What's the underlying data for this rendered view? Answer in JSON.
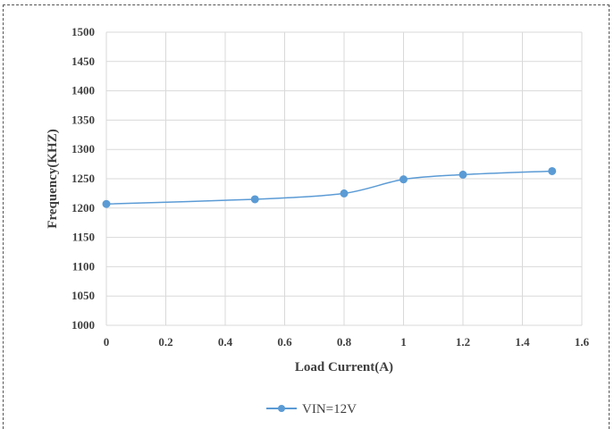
{
  "chart_data": {
    "type": "line",
    "title": "",
    "xlabel": "Load Current(A)",
    "ylabel": "Frequency(KHZ)",
    "xlim": [
      0,
      1.6
    ],
    "ylim": [
      1000,
      1500
    ],
    "x_ticks": [
      "0",
      "0.2",
      "0.4",
      "0.6",
      "0.8",
      "1",
      "1.2",
      "1.4",
      "1.6"
    ],
    "y_ticks": [
      "1500",
      "1450",
      "1400",
      "1350",
      "1300",
      "1250",
      "1200",
      "1150",
      "1100",
      "1050",
      "1000"
    ],
    "grid": true,
    "legend_position": "bottom",
    "series": [
      {
        "name": "VIN=12V",
        "color": "#5b9bd5",
        "x": [
          0,
          0.5,
          0.8,
          1.0,
          1.2,
          1.5
        ],
        "y": [
          1207,
          1215,
          1225,
          1249,
          1257,
          1263
        ]
      }
    ]
  }
}
